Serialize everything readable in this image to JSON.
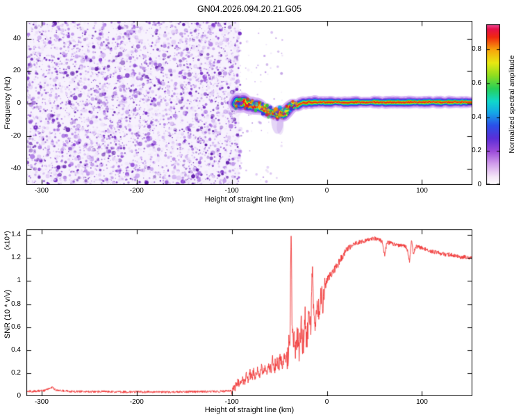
{
  "title": "GN04.2026.094.20.21.G05",
  "chart_data": [
    {
      "type": "heatmap",
      "panel": "spectrogram",
      "xlabel": "Height of straight line (km)",
      "ylabel": "Frequency (Hz)",
      "xlim": [
        -316,
        153
      ],
      "ylim": [
        -50,
        51
      ],
      "xticks": [
        -300,
        -200,
        -100,
        0,
        100
      ],
      "yticks": [
        40,
        20,
        0,
        -20,
        -40
      ],
      "description": "Broadband purple noise fills all frequencies left of about -92 km; a narrow high-amplitude rainbow signal ridge near 0 Hz runs from about -96 km to the right edge, dipping to about -7 Hz near -50 km with a faint purple tail below the dip",
      "noise_region": {
        "x_min": -316,
        "x_max": -92,
        "palette": [
          "#f0e7fb",
          "#dfc9f5",
          "#c6a2ee",
          "#aa76e3",
          "#8d46d6",
          "#7026c2",
          "#5c17a9"
        ]
      },
      "signal_track": {
        "points": [
          [
            -96,
            0
          ],
          [
            -94,
            1.5
          ],
          [
            -91,
            -0.5
          ],
          [
            -88,
            2
          ],
          [
            -85,
            0
          ],
          [
            -82,
            -1
          ],
          [
            -79,
            -0.5
          ],
          [
            -76,
            -1.8
          ],
          [
            -73,
            -1.2
          ],
          [
            -70,
            -2.5
          ],
          [
            -67,
            -3.2
          ],
          [
            -64,
            -4
          ],
          [
            -61,
            -5
          ],
          [
            -58,
            -5.5
          ],
          [
            -55,
            -6.2
          ],
          [
            -52,
            -6.5
          ],
          [
            -49,
            -5.2
          ],
          [
            -46,
            -6.8
          ],
          [
            -43,
            -5
          ],
          [
            -40,
            -3
          ],
          [
            -37,
            -1.5
          ],
          [
            -34,
            -0.5
          ],
          [
            -31,
            -1.5
          ],
          [
            -28,
            0
          ],
          [
            -25,
            0.8
          ],
          [
            -22,
            0.2
          ],
          [
            -19,
            1
          ],
          [
            -16,
            0.5
          ],
          [
            -13,
            1.2
          ],
          [
            -10,
            0.8
          ],
          [
            -5,
            1
          ],
          [
            0,
            0.8
          ],
          [
            10,
            1
          ],
          [
            20,
            0.6
          ],
          [
            30,
            1
          ],
          [
            40,
            0.8
          ],
          [
            50,
            1
          ],
          [
            60,
            0.7
          ],
          [
            70,
            1
          ],
          [
            80,
            0.8
          ],
          [
            90,
            1
          ],
          [
            100,
            0.8
          ],
          [
            110,
            1
          ],
          [
            120,
            0.9
          ],
          [
            130,
            1
          ],
          [
            140,
            0.9
          ],
          [
            153,
            1
          ]
        ],
        "layers": [
          {
            "w": 15,
            "color": "rgba(215,180,246,0.75)"
          },
          {
            "w": 11,
            "color": "rgba(160,95,225,0.85)"
          },
          {
            "w": 8,
            "color": "#3535dd"
          },
          {
            "w": 6,
            "color": "#00b8e8"
          },
          {
            "w": 4.4,
            "color": "#2fca3a"
          },
          {
            "w": 2.9,
            "color": "#f2e905"
          },
          {
            "w": 1.6,
            "color": "#ee2012"
          }
        ],
        "blob_colors": [
          "#7a2ccc",
          "#3535dd",
          "#00b8e8",
          "#2fca3a",
          "#f2e905",
          "#f09000",
          "#ee2012"
        ]
      },
      "colorbar": {
        "label": "Normalized spectral amplitude",
        "tick_values": [
          0,
          0.2,
          0.4,
          0.6,
          0.8
        ],
        "max": 0.95,
        "stops": [
          [
            0,
            "#ffffff"
          ],
          [
            0.05,
            "#f5e6f7"
          ],
          [
            0.13,
            "#d29fec"
          ],
          [
            0.21,
            "#9c4bda"
          ],
          [
            0.29,
            "#5a2fd8"
          ],
          [
            0.37,
            "#2b50e8"
          ],
          [
            0.45,
            "#15a8e8"
          ],
          [
            0.52,
            "#10d8cc"
          ],
          [
            0.6,
            "#28d058"
          ],
          [
            0.68,
            "#8ede20"
          ],
          [
            0.76,
            "#e8e812"
          ],
          [
            0.84,
            "#f8a60c"
          ],
          [
            0.92,
            "#f02810"
          ],
          [
            0.97,
            "#e6104a"
          ],
          [
            1,
            "#ec4f9b"
          ]
        ]
      }
    },
    {
      "type": "line",
      "panel": "snr",
      "xlabel": "Height of straight line (km)",
      "ylabel": "SNR (10 * v/v)",
      "ylabel_scale": "(x10⁴)",
      "xlim": [
        -316,
        153
      ],
      "ylim": [
        0,
        1.45
      ],
      "xticks": [
        -300,
        -200,
        -100,
        0,
        100
      ],
      "yticks": [
        0,
        0.2,
        0.4,
        0.6,
        0.8,
        1,
        1.2,
        1.4
      ],
      "line_color": "#f13636",
      "points": [
        [
          -316,
          0.045
        ],
        [
          -310,
          0.042
        ],
        [
          -302,
          0.046
        ],
        [
          -296,
          0.05
        ],
        [
          -292,
          0.07
        ],
        [
          -289,
          0.078
        ],
        [
          -286,
          0.055
        ],
        [
          -281,
          0.05
        ],
        [
          -274,
          0.044
        ],
        [
          -266,
          0.04
        ],
        [
          -258,
          0.04
        ],
        [
          -250,
          0.039
        ],
        [
          -242,
          0.038
        ],
        [
          -234,
          0.04
        ],
        [
          -226,
          0.038
        ],
        [
          -218,
          0.037
        ],
        [
          -210,
          0.037
        ],
        [
          -202,
          0.038
        ],
        [
          -194,
          0.036
        ],
        [
          -186,
          0.037
        ],
        [
          -178,
          0.036
        ],
        [
          -170,
          0.036
        ],
        [
          -162,
          0.037
        ],
        [
          -154,
          0.038
        ],
        [
          -146,
          0.038
        ],
        [
          -138,
          0.039
        ],
        [
          -130,
          0.04
        ],
        [
          -122,
          0.04
        ],
        [
          -114,
          0.041
        ],
        [
          -106,
          0.043
        ],
        [
          -101,
          0.046
        ],
        [
          -98,
          0.055
        ],
        [
          -95,
          0.09
        ],
        [
          -93,
          0.13
        ],
        [
          -91,
          0.1
        ],
        [
          -89,
          0.16
        ],
        [
          -87,
          0.11
        ],
        [
          -85,
          0.18
        ],
        [
          -83,
          0.13
        ],
        [
          -81,
          0.2
        ],
        [
          -79,
          0.15
        ],
        [
          -77,
          0.22
        ],
        [
          -75,
          0.16
        ],
        [
          -73,
          0.24
        ],
        [
          -71,
          0.18
        ],
        [
          -69,
          0.26
        ],
        [
          -67,
          0.2
        ],
        [
          -65,
          0.27
        ],
        [
          -63,
          0.21
        ],
        [
          -61,
          0.28
        ],
        [
          -59,
          0.23
        ],
        [
          -57,
          0.3
        ],
        [
          -55,
          0.25
        ],
        [
          -53,
          0.31
        ],
        [
          -51,
          0.26
        ],
        [
          -49,
          0.32
        ],
        [
          -47,
          0.28
        ],
        [
          -45,
          0.34
        ],
        [
          -43,
          0.3
        ],
        [
          -41,
          0.38
        ],
        [
          -39,
          0.45
        ],
        [
          -37.6,
          1.4
        ],
        [
          -36.6,
          0.62
        ],
        [
          -35,
          0.5
        ],
        [
          -33,
          0.42
        ],
        [
          -31,
          0.55
        ],
        [
          -29,
          0.38
        ],
        [
          -27,
          0.6
        ],
        [
          -25,
          0.45
        ],
        [
          -23,
          0.66
        ],
        [
          -21,
          0.5
        ],
        [
          -19,
          0.72
        ],
        [
          -17,
          0.55
        ],
        [
          -15.2,
          1.17
        ],
        [
          -14,
          0.8
        ],
        [
          -12,
          0.62
        ],
        [
          -10,
          0.85
        ],
        [
          -8,
          0.7
        ],
        [
          -6,
          0.9
        ],
        [
          -4,
          0.8
        ],
        [
          -2,
          0.95
        ],
        [
          0,
          1.0
        ],
        [
          3,
          1.05
        ],
        [
          6,
          1.08
        ],
        [
          10,
          1.12
        ],
        [
          15,
          1.2
        ],
        [
          20,
          1.26
        ],
        [
          25,
          1.3
        ],
        [
          30,
          1.33
        ],
        [
          35,
          1.34
        ],
        [
          40,
          1.35
        ],
        [
          45,
          1.36
        ],
        [
          50,
          1.37
        ],
        [
          55,
          1.36
        ],
        [
          58,
          1.34
        ],
        [
          61,
          1.22
        ],
        [
          63,
          1.34
        ],
        [
          67,
          1.33
        ],
        [
          70,
          1.32
        ],
        [
          75,
          1.31
        ],
        [
          80,
          1.31
        ],
        [
          84,
          1.29
        ],
        [
          87,
          1.17
        ],
        [
          89,
          1.36
        ],
        [
          91,
          1.24
        ],
        [
          94,
          1.3
        ],
        [
          100,
          1.29
        ],
        [
          105,
          1.27
        ],
        [
          110,
          1.26
        ],
        [
          115,
          1.25
        ],
        [
          120,
          1.24
        ],
        [
          125,
          1.23
        ],
        [
          130,
          1.23
        ],
        [
          135,
          1.22
        ],
        [
          140,
          1.21
        ],
        [
          145,
          1.21
        ],
        [
          150,
          1.2
        ],
        [
          153,
          1.2
        ]
      ],
      "noise_segments": [
        [
          -316,
          -100,
          0.01
        ],
        [
          -100,
          -60,
          0.04
        ],
        [
          -60,
          -42,
          0.06
        ],
        [
          -42,
          -17,
          0.13
        ],
        [
          -17,
          -2,
          0.1
        ],
        [
          -2,
          25,
          0.035
        ],
        [
          25,
          153,
          0.018
        ]
      ]
    }
  ]
}
